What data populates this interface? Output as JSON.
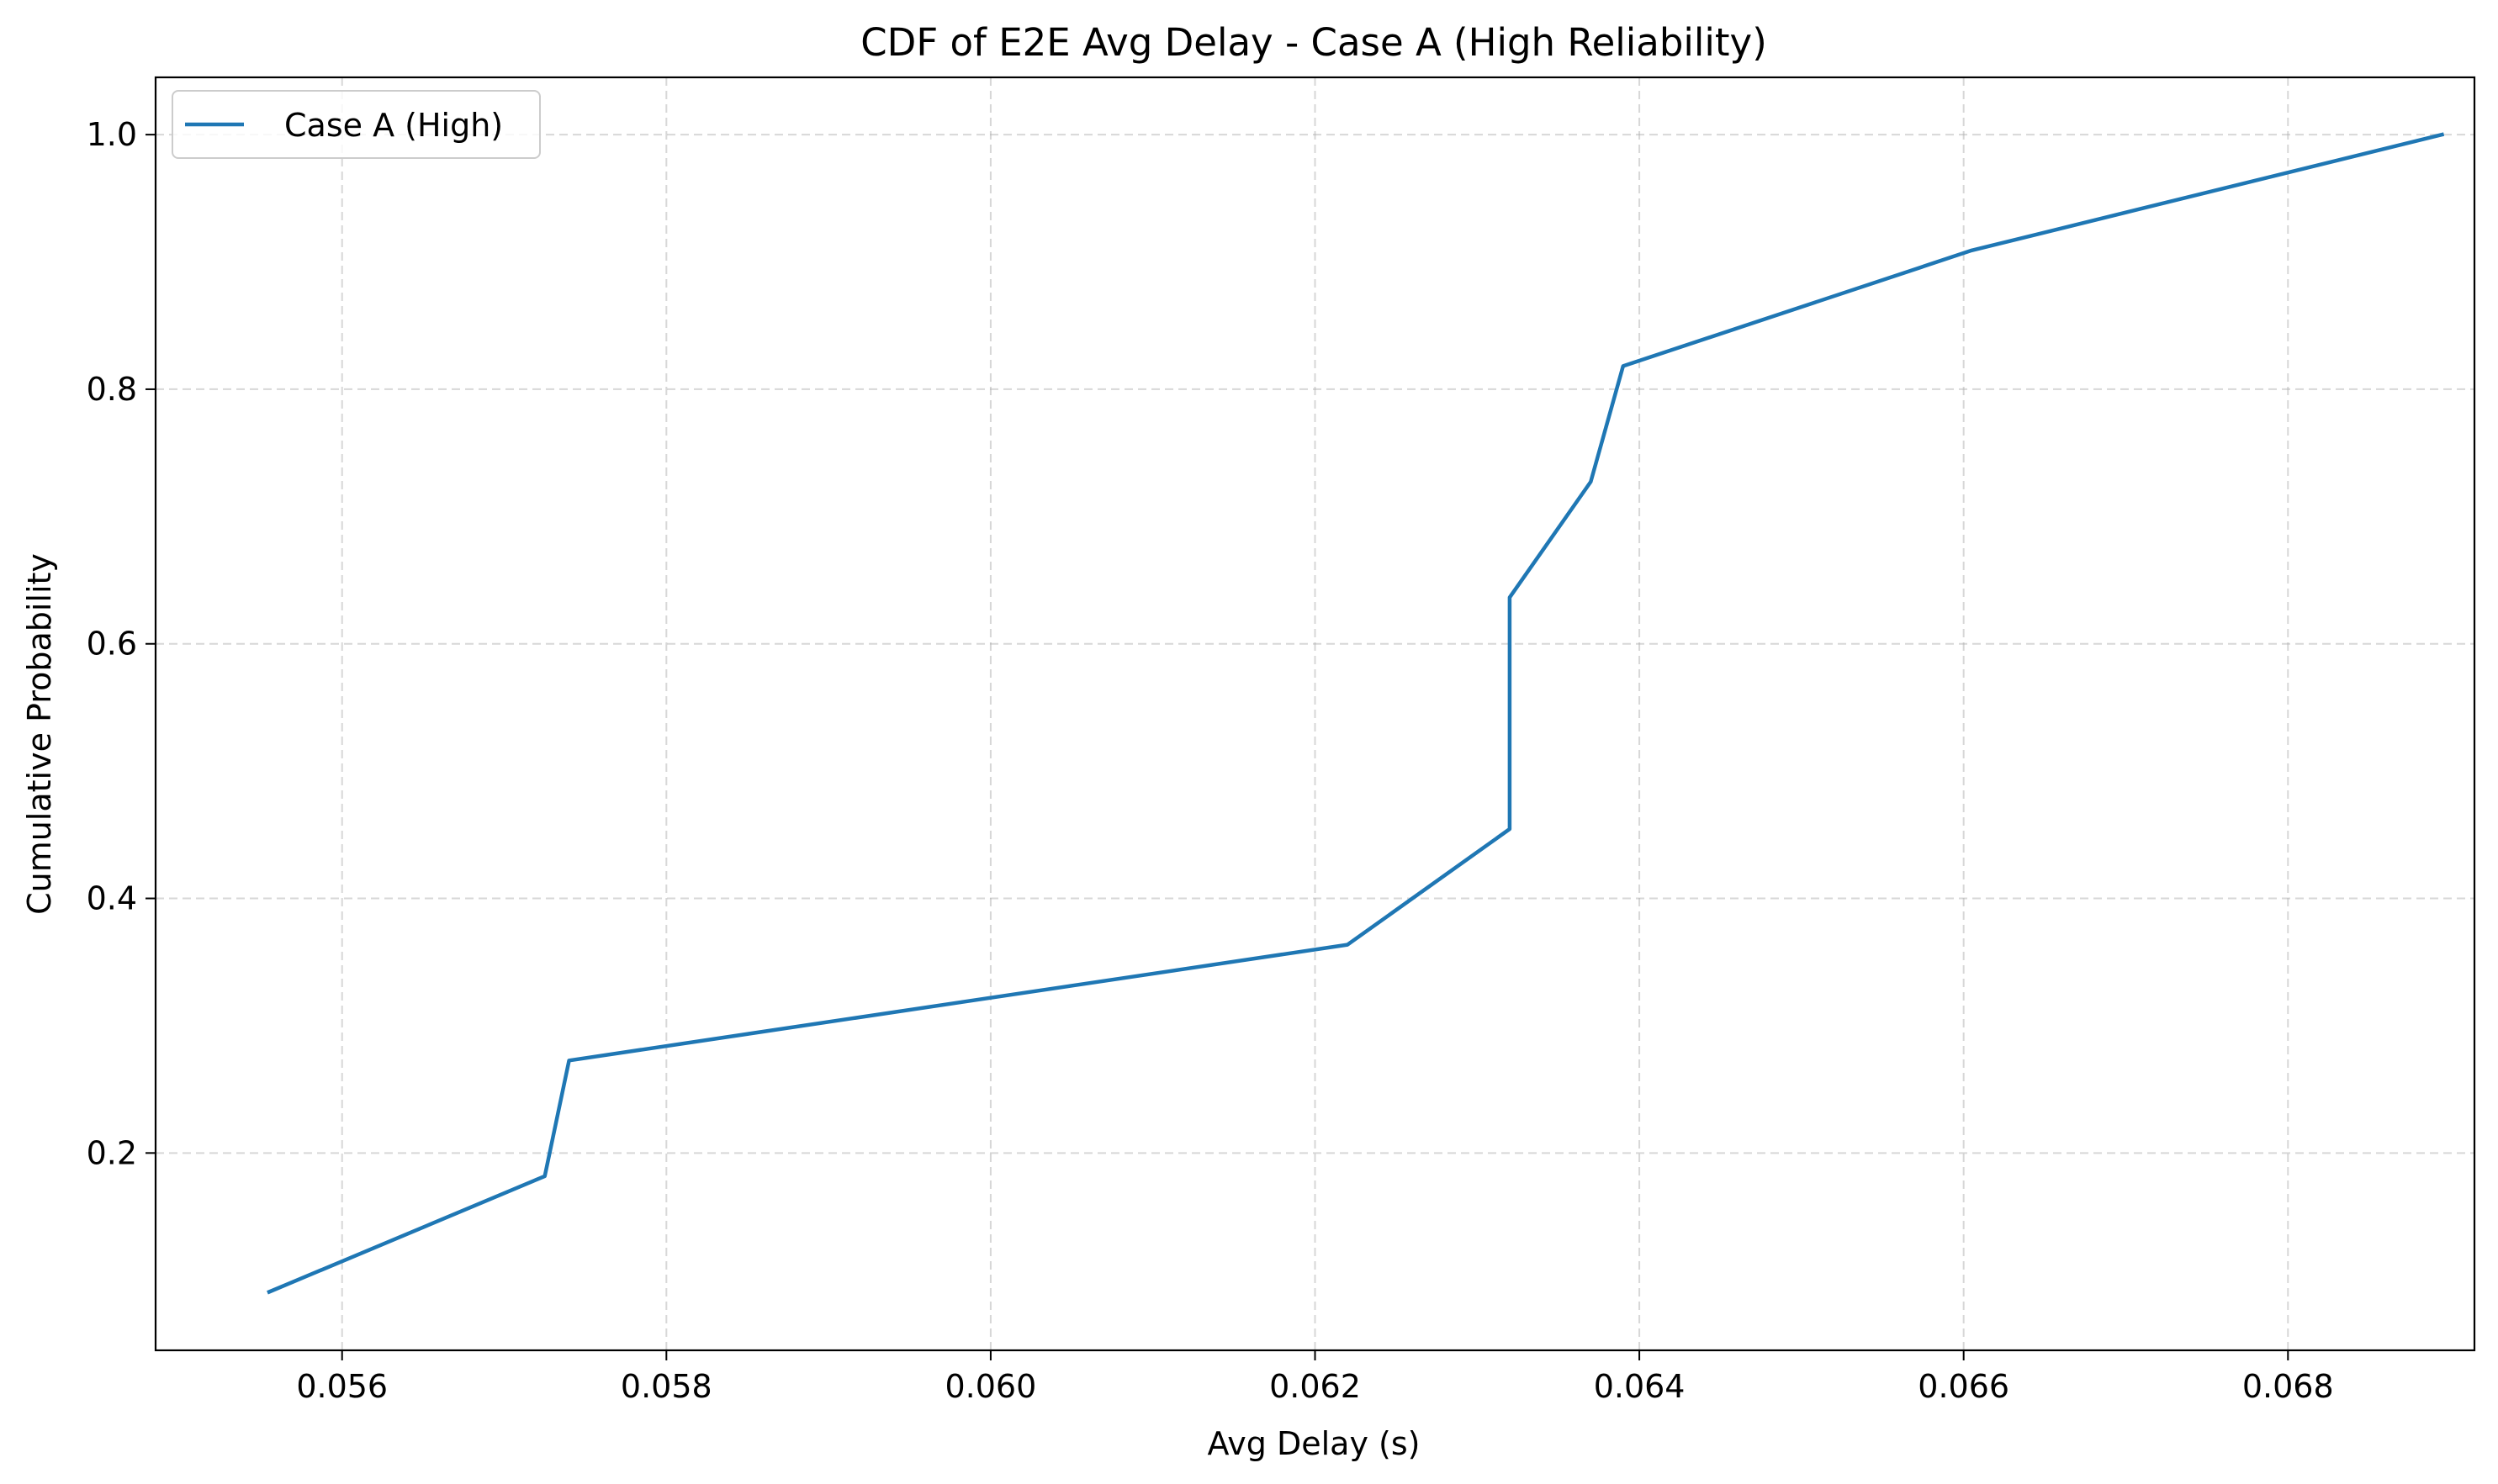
{
  "chart_data": {
    "type": "line",
    "title": "CDF of E2E Avg Delay - Case A (High Reliability)",
    "xlabel": "Avg Delay (s)",
    "ylabel": "Cumulative Probability",
    "xlim": [
      0.05485,
      0.06915
    ],
    "ylim": [
      0.045,
      1.045
    ],
    "xticks": [
      0.056,
      0.058,
      0.06,
      0.062,
      0.064,
      0.066,
      0.068
    ],
    "xtick_labels": [
      "0.056",
      "0.058",
      "0.060",
      "0.062",
      "0.064",
      "0.066",
      "0.068"
    ],
    "yticks": [
      0.2,
      0.4,
      0.6,
      0.8,
      1.0
    ],
    "ytick_labels": [
      "0.2",
      "0.4",
      "0.6",
      "0.8",
      "1.0"
    ],
    "grid": true,
    "legend_position": "top-left",
    "series": [
      {
        "name": "Case A (High)",
        "color": "#1f77b4",
        "x": [
          0.05555,
          0.05725,
          0.0574,
          0.0622,
          0.0632,
          0.0632,
          0.0637,
          0.0639,
          0.06605,
          0.06895
        ],
        "y": [
          0.0909,
          0.1818,
          0.2727,
          0.3636,
          0.4545,
          0.6364,
          0.7273,
          0.8182,
          0.9091,
          1.0
        ]
      }
    ]
  }
}
